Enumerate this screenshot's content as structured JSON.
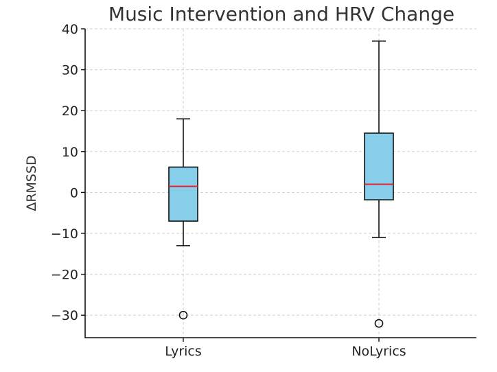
{
  "chart_data": {
    "type": "box",
    "title": "Music Intervention and HRV Change",
    "xlabel": "",
    "ylabel": "ΔRMSSD",
    "ylim": [
      -35.5,
      40
    ],
    "yticks": [
      40,
      30,
      20,
      10,
      0,
      -10,
      -20,
      -30
    ],
    "ytick_labels": [
      "40",
      "30",
      "20",
      "10",
      "0",
      "−10",
      "−20",
      "−30"
    ],
    "grid": true,
    "categories": [
      "Lyrics",
      "NoLyrics"
    ],
    "boxes": [
      {
        "category": "Lyrics",
        "whisker_low": -13,
        "q1": -7,
        "median": 1.5,
        "q3": 6.2,
        "whisker_high": 18,
        "outliers": [
          -30
        ]
      },
      {
        "category": "NoLyrics",
        "whisker_low": -11,
        "q1": -1.8,
        "median": 2,
        "q3": 14.5,
        "whisker_high": 37,
        "outliers": [
          -32
        ]
      }
    ],
    "colors": {
      "box_fill": "#87ceeb",
      "median": "#e8212e",
      "axis": "#111111",
      "grid": "#cfcfcf"
    }
  }
}
